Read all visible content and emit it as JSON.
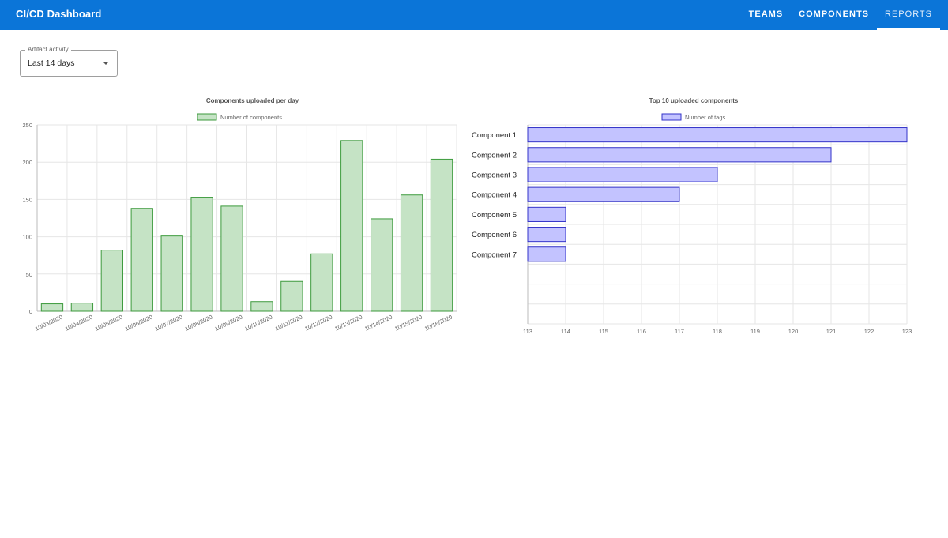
{
  "header": {
    "title": "CI/CD Dashboard",
    "tabs": [
      {
        "label": "TEAMS",
        "active": false
      },
      {
        "label": "COMPONENTS",
        "active": false
      },
      {
        "label": "REPORTS",
        "active": true
      }
    ]
  },
  "filter": {
    "label": "Artifact activity",
    "value": "Last 14 days"
  },
  "colors": {
    "appbar": "#0b75d8",
    "green_fill": "#c5e3c5",
    "green_stroke": "#3c9a3c",
    "blue_fill": "#c3c3ff",
    "blue_stroke": "#3333c8"
  },
  "chart_data": [
    {
      "type": "bar",
      "title": "Components uploaded per day",
      "categories": [
        "10/03/2020",
        "10/04/2020",
        "10/05/2020",
        "10/06/2020",
        "10/07/2020",
        "10/08/2020",
        "10/09/2020",
        "10/10/2020",
        "10/11/2020",
        "10/12/2020",
        "10/13/2020",
        "10/14/2020",
        "10/15/2020",
        "10/16/2020"
      ],
      "series": [
        {
          "name": "Number of components",
          "values": [
            10,
            11,
            82,
            138,
            101,
            153,
            141,
            13,
            40,
            77,
            229,
            124,
            156,
            204
          ]
        }
      ],
      "ylim": [
        0,
        250
      ],
      "yticks": [
        0,
        50,
        100,
        150,
        200,
        250
      ],
      "grid": true,
      "legend": "top"
    },
    {
      "type": "bar",
      "orientation": "horizontal",
      "title": "Top 10 uploaded components",
      "categories": [
        "Component 1",
        "Component 2",
        "Component 3",
        "Component 4",
        "Component 5",
        "Component 6",
        "Component 7"
      ],
      "series": [
        {
          "name": "Number of tags",
          "values": [
            123,
            121,
            118,
            117,
            114,
            114,
            114
          ]
        }
      ],
      "xlim": [
        113,
        123
      ],
      "xticks": [
        113,
        114,
        115,
        116,
        117,
        118,
        119,
        120,
        121,
        122,
        123
      ],
      "slots": 10,
      "grid": true,
      "legend": "top"
    }
  ]
}
